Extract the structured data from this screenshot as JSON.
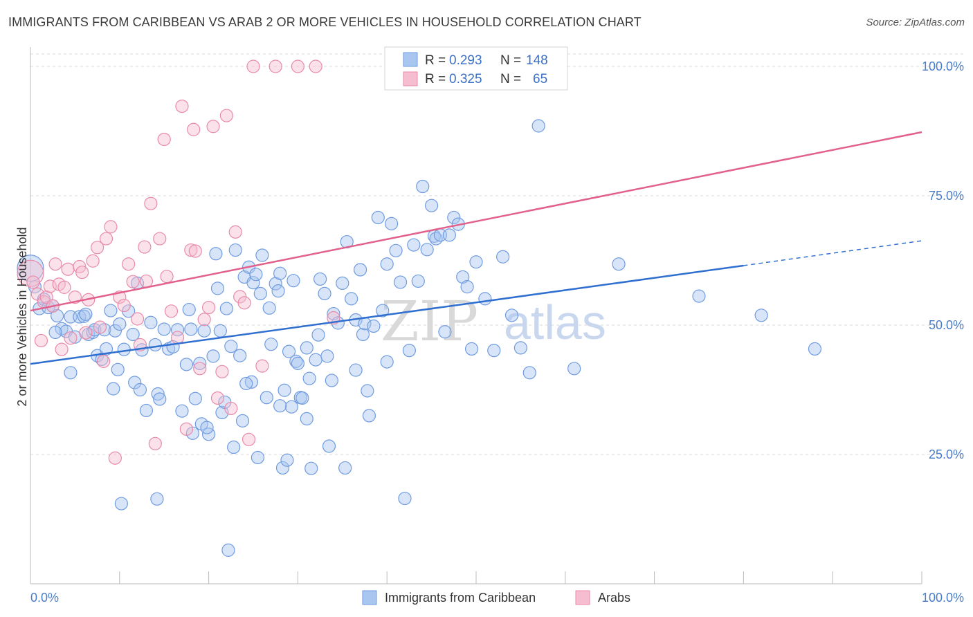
{
  "title": "IMMIGRANTS FROM CARIBBEAN VS ARAB 2 OR MORE VEHICLES IN HOUSEHOLD CORRELATION CHART",
  "source": "Source: ZipAtlas.com",
  "watermark": {
    "zip": "ZIP",
    "atlas": "atlas"
  },
  "colors": {
    "blue_fill": "#a9c6f0",
    "blue_stroke": "#6f9be0",
    "blue_line": "#2f6fd0",
    "pink_fill": "#f6bcd0",
    "pink_stroke": "#e88aa8",
    "pink_line": "#e2608c",
    "grid": "#d8d8d8",
    "tick_text": "#4a7cc8"
  },
  "legend": {
    "row1": {
      "r_label": "R =",
      "r_value": "0.293",
      "n_label": "N =",
      "n_value": "148"
    },
    "row2": {
      "r_label": "R =",
      "r_value": "0.325",
      "n_label": "N =",
      "n_value": "65"
    }
  },
  "bottom_legend": {
    "series1": "Immigrants from Caribbean",
    "series2": "Arabs"
  },
  "chart_data": {
    "type": "scatter",
    "title": "IMMIGRANTS FROM CARIBBEAN VS ARAB 2 OR MORE VEHICLES IN HOUSEHOLD CORRELATION CHART",
    "xlabel": "",
    "ylabel": "2 or more Vehicles in Household",
    "xlim": [
      0,
      100
    ],
    "ylim": [
      0,
      103
    ],
    "x_tick_labels": [
      "0.0%",
      "100.0%"
    ],
    "y_ticks": [
      25,
      50,
      75,
      100
    ],
    "y_tick_labels": [
      "25.0%",
      "50.0%",
      "75.0%",
      "100.0%"
    ],
    "grid": true,
    "legend_position": "top-center",
    "series": [
      {
        "name": "Immigrants from Caribbean",
        "color": "#a9c6f0",
        "stats": {
          "R": 0.293,
          "N": 148
        },
        "trend": {
          "x0": 0,
          "y0": 42.5,
          "x1": 80,
          "y1": 61.5,
          "dashed_to_x": 100,
          "dashed_to_y": 66.3
        },
        "points": [
          [
            0,
            61
          ],
          [
            0.5,
            57.4
          ],
          [
            1,
            53.2
          ],
          [
            1.5,
            55
          ],
          [
            2,
            53.4
          ],
          [
            2.5,
            53.7
          ],
          [
            3,
            51.8
          ],
          [
            3.5,
            49.3
          ],
          [
            4,
            48.8
          ],
          [
            4.5,
            51.6
          ],
          [
            5,
            47.7
          ],
          [
            5.5,
            51.6
          ],
          [
            6,
            51.7
          ],
          [
            6.2,
            52.1
          ],
          [
            6.5,
            48.2
          ],
          [
            7,
            48.6
          ],
          [
            7.2,
            49.1
          ],
          [
            7.5,
            44.1
          ],
          [
            8,
            43.4
          ],
          [
            8.3,
            49.1
          ],
          [
            8.5,
            45.4
          ],
          [
            9,
            52.8
          ],
          [
            9.3,
            37.7
          ],
          [
            9.5,
            48.9
          ],
          [
            10,
            50.2
          ],
          [
            10.5,
            45.3
          ],
          [
            11,
            52.7
          ],
          [
            11.5,
            48.2
          ],
          [
            11.7,
            38.9
          ],
          [
            12,
            58.1
          ],
          [
            12.3,
            37.5
          ],
          [
            12.5,
            45.2
          ],
          [
            13,
            33.5
          ],
          [
            13.5,
            50.5
          ],
          [
            14,
            46.2
          ],
          [
            14.3,
            36.7
          ],
          [
            14.5,
            35.7
          ],
          [
            15,
            49.2
          ],
          [
            15.5,
            45.4
          ],
          [
            16,
            45.8
          ],
          [
            16.5,
            49.1
          ],
          [
            17,
            33.4
          ],
          [
            17.5,
            42.4
          ],
          [
            17.8,
            53
          ],
          [
            18,
            49.2
          ],
          [
            18.2,
            29.1
          ],
          [
            18.5,
            35.8
          ],
          [
            19,
            42.6
          ],
          [
            19.2,
            30.9
          ],
          [
            19.5,
            48.9
          ],
          [
            20,
            28.9
          ],
          [
            20.5,
            44
          ],
          [
            20.8,
            63.8
          ],
          [
            21,
            57.1
          ],
          [
            21.3,
            48.9
          ],
          [
            21.5,
            33.1
          ],
          [
            21.8,
            35.1
          ],
          [
            22,
            53.2
          ],
          [
            22.5,
            45.9
          ],
          [
            22.8,
            26.4
          ],
          [
            23,
            64.5
          ],
          [
            23.5,
            44.1
          ],
          [
            23.8,
            31.5
          ],
          [
            24,
            59.3
          ],
          [
            24.5,
            61.2
          ],
          [
            24.8,
            39
          ],
          [
            25,
            58.2
          ],
          [
            25.3,
            59.8
          ],
          [
            25.5,
            24.4
          ],
          [
            25.8,
            56.1
          ],
          [
            26,
            63.5
          ],
          [
            26.5,
            36
          ],
          [
            26.8,
            53.3
          ],
          [
            27,
            46.3
          ],
          [
            27.5,
            58
          ],
          [
            27.8,
            56.6
          ],
          [
            28,
            60
          ],
          [
            28.3,
            22.4
          ],
          [
            28.5,
            37.4
          ],
          [
            28.8,
            23.9
          ],
          [
            29,
            44.9
          ],
          [
            29.3,
            34.2
          ],
          [
            29.5,
            58.6
          ],
          [
            29.8,
            43
          ],
          [
            30,
            42.6
          ],
          [
            30.3,
            36
          ],
          [
            30.5,
            35.9
          ],
          [
            31,
            45.6
          ],
          [
            31.3,
            39.7
          ],
          [
            31.5,
            22.3
          ],
          [
            32,
            43.3
          ],
          [
            32.3,
            48.1
          ],
          [
            32.5,
            58.9
          ],
          [
            33,
            56.1
          ],
          [
            33.3,
            44
          ],
          [
            33.5,
            26.6
          ],
          [
            33.8,
            39.3
          ],
          [
            34,
            52.2
          ],
          [
            34.5,
            50.4
          ],
          [
            35,
            58.1
          ],
          [
            35.3,
            22.4
          ],
          [
            35.5,
            66.1
          ],
          [
            36,
            55.1
          ],
          [
            36.5,
            51
          ],
          [
            37,
            60.7
          ],
          [
            37.3,
            48.2
          ],
          [
            37.5,
            50.3
          ],
          [
            37.8,
            37.3
          ],
          [
            38,
            32.5
          ],
          [
            38.5,
            49.8
          ],
          [
            39,
            70.8
          ],
          [
            39.5,
            52.8
          ],
          [
            40,
            61.8
          ],
          [
            40.5,
            69.6
          ],
          [
            41,
            64.4
          ],
          [
            41.5,
            58.3
          ],
          [
            42,
            16.5
          ],
          [
            42.5,
            45.1
          ],
          [
            43,
            65.5
          ],
          [
            43.5,
            58.5
          ],
          [
            44,
            76.8
          ],
          [
            44.5,
            64.6
          ],
          [
            45,
            73.1
          ],
          [
            45.3,
            67.2
          ],
          [
            45.5,
            66.7
          ],
          [
            46,
            67.4
          ],
          [
            46.5,
            48.7
          ],
          [
            47,
            67.4
          ],
          [
            47.5,
            70.8
          ],
          [
            48,
            69.5
          ],
          [
            48.5,
            59.3
          ],
          [
            49,
            57.4
          ],
          [
            49.5,
            45.4
          ],
          [
            50,
            62.2
          ],
          [
            51,
            55.1
          ],
          [
            52,
            45.1
          ],
          [
            53,
            63.2
          ],
          [
            54,
            51.9
          ],
          [
            55,
            45.6
          ],
          [
            56,
            40.8
          ],
          [
            10.2,
            15.5
          ],
          [
            14.2,
            16.4
          ],
          [
            22.2,
            6.5
          ],
          [
            19.8,
            30.2
          ],
          [
            24.2,
            38.7
          ],
          [
            9.8,
            41.4
          ],
          [
            28,
            34.4
          ],
          [
            31,
            31.9
          ],
          [
            36.5,
            41.3
          ],
          [
            40,
            42.9
          ],
          [
            57,
            88.5
          ],
          [
            61,
            41.6
          ],
          [
            66,
            61.8
          ],
          [
            75,
            55.6
          ],
          [
            82,
            51.9
          ],
          [
            88,
            45.4
          ],
          [
            4.5,
            40.8
          ],
          [
            2.8,
            48.6
          ]
        ]
      },
      {
        "name": "Arabs",
        "color": "#f6bcd0",
        "stats": {
          "R": 0.325,
          "N": 65
        },
        "trend": {
          "x0": 0,
          "y0": 52.8,
          "x1": 100,
          "y1": 87.3
        },
        "points": [
          [
            0,
            60
          ],
          [
            0.3,
            58.3
          ],
          [
            0.8,
            56
          ],
          [
            1.2,
            47
          ],
          [
            1.5,
            54.5
          ],
          [
            1.8,
            55.4
          ],
          [
            2.2,
            57.5
          ],
          [
            2.5,
            53.7
          ],
          [
            2.8,
            61.8
          ],
          [
            3.2,
            57.9
          ],
          [
            3.5,
            45.3
          ],
          [
            3.8,
            57.3
          ],
          [
            4.2,
            60.8
          ],
          [
            4.5,
            47.5
          ],
          [
            5,
            55.4
          ],
          [
            5.5,
            61.3
          ],
          [
            5.8,
            60.2
          ],
          [
            6.2,
            48.5
          ],
          [
            6.5,
            54.9
          ],
          [
            7,
            62.4
          ],
          [
            7.5,
            65
          ],
          [
            7.8,
            49.6
          ],
          [
            8.2,
            43
          ],
          [
            8.5,
            66.7
          ],
          [
            9,
            69
          ],
          [
            9.5,
            24.3
          ],
          [
            10,
            55.4
          ],
          [
            10.5,
            53.8
          ],
          [
            11,
            61.8
          ],
          [
            11.5,
            58.4
          ],
          [
            12,
            51.2
          ],
          [
            12.3,
            46.2
          ],
          [
            12.8,
            65.1
          ],
          [
            13,
            58.5
          ],
          [
            13.5,
            73.5
          ],
          [
            14,
            27.1
          ],
          [
            14.5,
            66.7
          ],
          [
            15,
            85.9
          ],
          [
            15.3,
            59.4
          ],
          [
            15.8,
            52.7
          ],
          [
            16.5,
            47.6
          ],
          [
            17,
            92.3
          ],
          [
            17.5,
            29.9
          ],
          [
            18,
            64.5
          ],
          [
            18.3,
            87.8
          ],
          [
            18.5,
            64.3
          ],
          [
            19,
            41.6
          ],
          [
            19.5,
            51.1
          ],
          [
            20,
            53.4
          ],
          [
            20.5,
            88.4
          ],
          [
            21,
            35.9
          ],
          [
            21.5,
            41
          ],
          [
            22,
            90.5
          ],
          [
            22.5,
            33.9
          ],
          [
            23,
            68
          ],
          [
            23.5,
            55.5
          ],
          [
            24,
            54.3
          ],
          [
            24.5,
            27.9
          ],
          [
            25,
            100
          ],
          [
            26,
            42.1
          ],
          [
            27.5,
            100
          ],
          [
            30,
            100
          ],
          [
            32,
            100
          ],
          [
            34,
            51.4
          ],
          [
            41.4,
            100
          ]
        ]
      }
    ]
  }
}
